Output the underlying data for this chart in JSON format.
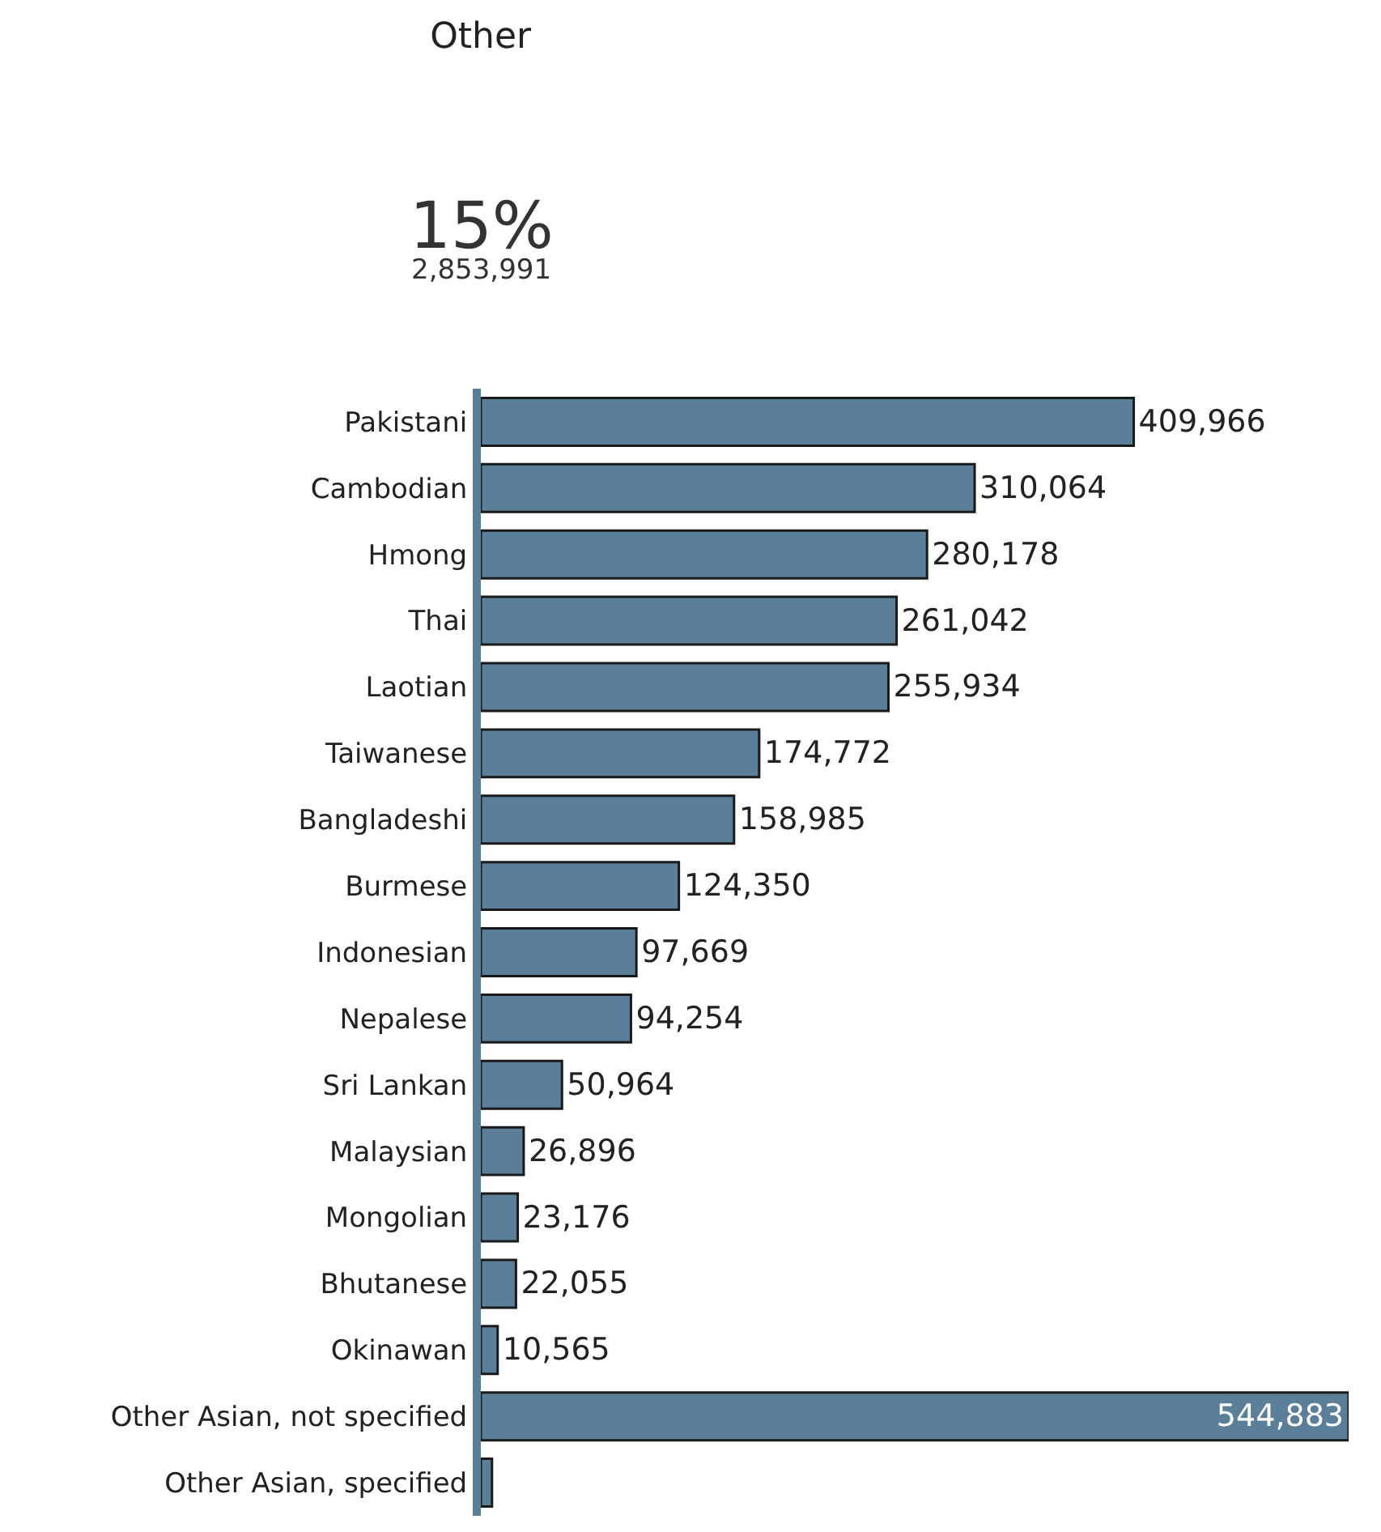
{
  "chart_data": {
    "type": "bar",
    "orientation": "horizontal",
    "title": "Other",
    "annotations": [
      "15%",
      "2,853,991"
    ],
    "categories": [
      "Pakistani",
      "Cambodian",
      "Hmong",
      "Thai",
      "Laotian",
      "Taiwanese",
      "Bangladeshi",
      "Burmese",
      "Indonesian",
      "Nepalese",
      "Sri Lankan",
      "Malaysian",
      "Mongolian",
      "Bhutanese",
      "Okinawan",
      "Other Asian, not specified",
      "Other Asian, specified"
    ],
    "values": [
      409966,
      310064,
      280178,
      261042,
      255934,
      174772,
      158985,
      124350,
      97669,
      94254,
      50964,
      26896,
      23176,
      22055,
      10565,
      544883,
      7000
    ],
    "value_labels": [
      "409,966",
      "310,064",
      "280,178",
      "261,042",
      "255,934",
      "174,772",
      "158,985",
      "124,350",
      "97,669",
      "94,254",
      "50,964",
      "26,896",
      "23,176",
      "22,055",
      "10,565",
      "544,883",
      null
    ],
    "color": "#5b7f99",
    "legend": false
  }
}
